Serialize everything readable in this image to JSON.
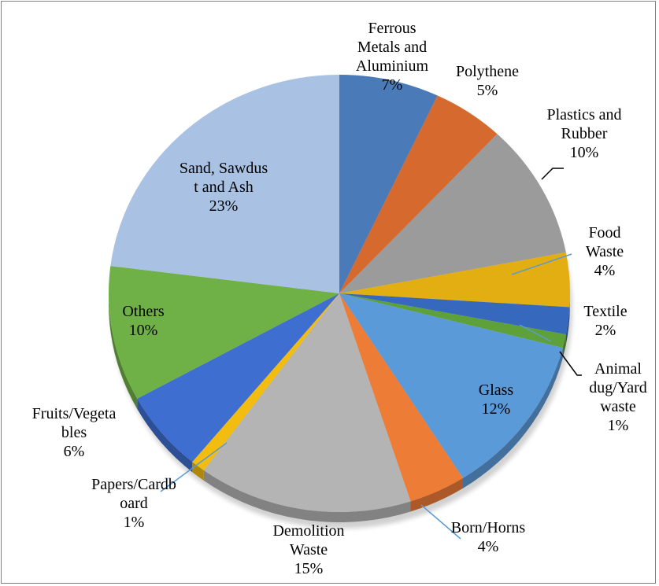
{
  "chart_data": {
    "type": "pie",
    "title": "",
    "legend": "none",
    "slices": [
      {
        "name": "Ferrous Metals and Aluminium",
        "value": 7,
        "label_lines": [
          "Ferrous",
          "Metals and",
          "Aluminium",
          "7%"
        ],
        "color": "#4a7ab7"
      },
      {
        "name": "Polythene",
        "value": 5,
        "label_lines": [
          "Polythene",
          "5%"
        ],
        "color": "#d6692d"
      },
      {
        "name": "Plastics and Rubber",
        "value": 10,
        "label_lines": [
          "Plastics and",
          "Rubber",
          "10%"
        ],
        "color": "#9b9b9b"
      },
      {
        "name": "Food Waste",
        "value": 4,
        "label_lines": [
          "Food",
          "Waste",
          "4%"
        ],
        "color": "#e3ae11"
      },
      {
        "name": "Textile",
        "value": 2,
        "label_lines": [
          "Textile",
          "2%"
        ],
        "color": "#3668bd"
      },
      {
        "name": "Animal dug/Yard waste",
        "value": 1,
        "label_lines": [
          "Animal",
          "dug/Yard",
          "waste",
          "1%"
        ],
        "color": "#5ea03a"
      },
      {
        "name": "Glass",
        "value": 12,
        "label_lines": [
          "Glass",
          "12%"
        ],
        "color": "#5b9ad9"
      },
      {
        "name": "Born/Horns",
        "value": 4,
        "label_lines": [
          "Born/Horns",
          "4%"
        ],
        "color": "#ed7c37"
      },
      {
        "name": "Demolition Waste",
        "value": 15,
        "label_lines": [
          "Demolition",
          "Waste",
          "15%"
        ],
        "color": "#b4b4b4"
      },
      {
        "name": "Papers/Cardboard",
        "value": 1,
        "label_lines": [
          "Papers/Cardb",
          "oard",
          "1%"
        ],
        "color": "#f2bd10"
      },
      {
        "name": "Fruits/Vegetables",
        "value": 6,
        "label_lines": [
          "Fruits/Vegeta",
          "bles",
          "6%"
        ],
        "color": "#3e6ecf"
      },
      {
        "name": "Others",
        "value": 10,
        "label_lines": [
          "Others",
          "10%"
        ],
        "color": "#6fb047"
      },
      {
        "name": "Sand, Sawdust and Ash",
        "value": 23,
        "label_lines": [
          "Sand, Sawdus",
          "t and Ash",
          "23%"
        ],
        "color": "#a9c1e2"
      }
    ]
  }
}
